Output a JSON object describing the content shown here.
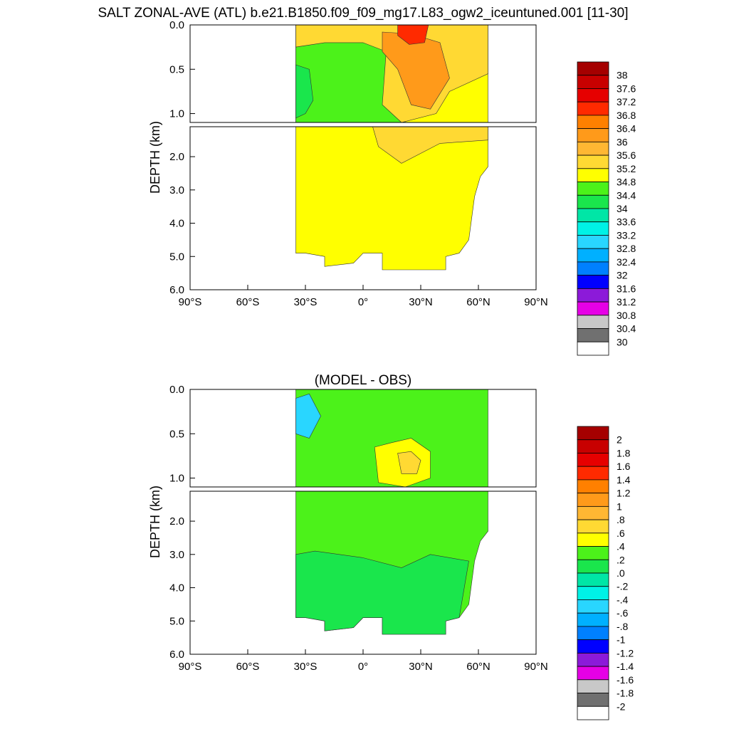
{
  "figure": {
    "title": "SALT ZONAL-AVE (ATL) b.e21.B1850.f09_f09_mg17.L83_ogw2_iceuntuned.001 [11-30]"
  },
  "chart_data": [
    {
      "type": "heatmap",
      "title": "",
      "ylabel": "DEPTH (km)",
      "x_ticks": [
        "90°S",
        "60°S",
        "30°S",
        "0°",
        "30°N",
        "60°N",
        "90°N"
      ],
      "xlim": [
        -90,
        90
      ],
      "ylim_top_panel": [
        0.0,
        1.1
      ],
      "ylim_bottom_panel": [
        1.1,
        6.0
      ],
      "y_ticks_top": [
        "0.0",
        "0.5",
        "1.0"
      ],
      "y_ticks_bottom": [
        "2.0",
        "3.0",
        "4.0",
        "5.0",
        "6.0"
      ],
      "data_extent_lat": [
        -35,
        65
      ],
      "colorbar": {
        "labels": [
          "38",
          "37.6",
          "37.2",
          "36.8",
          "36.4",
          "36",
          "35.6",
          "35.2",
          "34.8",
          "34.4",
          "34",
          "33.6",
          "33.2",
          "32.8",
          "32.4",
          "32",
          "31.6",
          "31.2",
          "30.8",
          "30.4",
          "30"
        ],
        "colors": [
          "#a50000",
          "#c80000",
          "#e60000",
          "#ff2a00",
          "#ff8000",
          "#ff9a1a",
          "#ffb733",
          "#ffd933",
          "#ffff00",
          "#4cf21a",
          "#1ae64c",
          "#00e6a6",
          "#00f2e6",
          "#29d6ff",
          "#00b0ff",
          "#0080ff",
          "#0000ff",
          "#8c1ad9",
          "#e600e6",
          "#c8c8c8",
          "#707070",
          "#ffffff"
        ]
      },
      "fill_colors": {
        "main": "#ffff00",
        "upper_warm": "#ffd933",
        "subtropical_high": "#ff9a1a",
        "surface_max": "#ff2a00",
        "south_fresh": "#4cf21a",
        "intermediate_fresh": "#1ae64c"
      }
    },
    {
      "type": "heatmap",
      "title": "(MODEL - OBS)",
      "ylabel": "DEPTH (km)",
      "x_ticks": [
        "90°S",
        "60°S",
        "30°S",
        "0°",
        "30°N",
        "60°N",
        "90°N"
      ],
      "xlim": [
        -90,
        90
      ],
      "ylim_top_panel": [
        0.0,
        1.1
      ],
      "ylim_bottom_panel": [
        1.1,
        6.0
      ],
      "y_ticks_top": [
        "0.0",
        "0.5",
        "1.0"
      ],
      "y_ticks_bottom": [
        "2.0",
        "3.0",
        "4.0",
        "5.0",
        "6.0"
      ],
      "data_extent_lat": [
        -35,
        65
      ],
      "colorbar": {
        "labels": [
          "2",
          "1.8",
          "1.6",
          "1.4",
          "1.2",
          "1",
          ".8",
          ".6",
          ".4",
          ".2",
          ".0",
          "-.2",
          "-.4",
          "-.6",
          "-.8",
          "-1",
          "-1.2",
          "-1.4",
          "-1.6",
          "-1.8",
          "-2"
        ],
        "colors": [
          "#a50000",
          "#c80000",
          "#e60000",
          "#ff2a00",
          "#ff8000",
          "#ff9a1a",
          "#ffb733",
          "#ffd933",
          "#ffff00",
          "#4cf21a",
          "#1ae64c",
          "#00e6a6",
          "#00f2e6",
          "#29d6ff",
          "#00b0ff",
          "#0080ff",
          "#0000ff",
          "#8c1ad9",
          "#e600e6",
          "#c8c8c8",
          "#707070",
          "#ffffff"
        ]
      },
      "fill_colors": {
        "main": "#4cf21a",
        "lower_band": "#1ae64c",
        "anomaly_pos": "#ffff00",
        "anomaly_pos_core": "#ffd933",
        "south_neg": "#29d6ff"
      }
    }
  ]
}
